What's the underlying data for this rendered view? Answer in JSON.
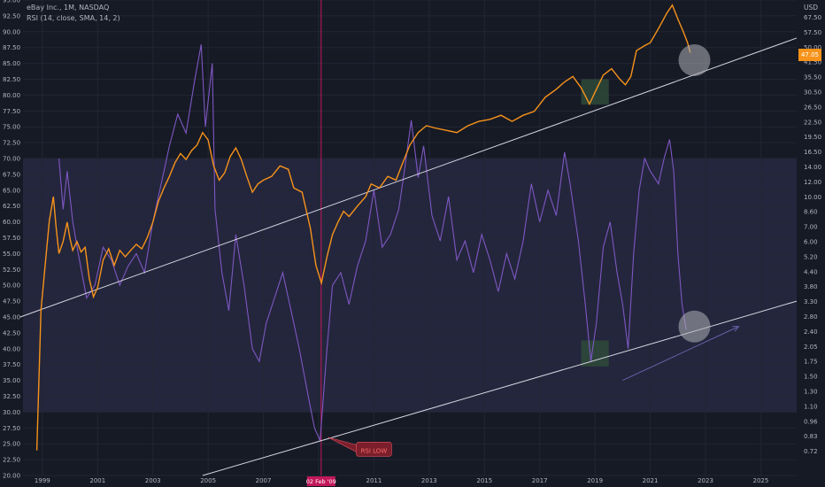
{
  "header": {
    "symbol_line": "eBay Inc., 1M, NASDAQ",
    "rsi_line": "RSI (14, close, SMA, 14, 2)"
  },
  "right_axis": {
    "unit": "USD",
    "ticks": [
      "67.50",
      "57.50",
      "50.00",
      "41.50",
      "35.50",
      "30.50",
      "26.50",
      "22.50",
      "19.50",
      "16.50",
      "14.00",
      "12.00",
      "10.00",
      "8.60",
      "7.00",
      "6.00",
      "5.20",
      "4.40",
      "3.80",
      "3.30",
      "2.80",
      "2.40",
      "2.05",
      "1.75",
      "1.50",
      "1.30",
      "1.10",
      "0.96",
      "0.83",
      "0.72"
    ],
    "price_badge": "47.05"
  },
  "left_axis": {
    "ticks": [
      "95.00",
      "92.50",
      "90.00",
      "87.50",
      "85.00",
      "82.50",
      "80.00",
      "77.50",
      "75.00",
      "72.50",
      "70.00",
      "67.50",
      "65.00",
      "62.50",
      "60.00",
      "57.50",
      "55.00",
      "52.50",
      "50.00",
      "47.50",
      "45.00",
      "42.50",
      "40.00",
      "37.50",
      "35.00",
      "32.50",
      "30.00",
      "27.50",
      "25.00",
      "22.50",
      "20.00"
    ]
  },
  "annotations": {
    "date_marker": "02 Feb '09",
    "rsi_low_label": "RSI LOW"
  },
  "colors": {
    "background": "#161a25",
    "price": "#f7931a",
    "rsi": "#7e57c2",
    "band": "#2a2b45",
    "trendline": "#d6d6e2",
    "marker": "#c2185b",
    "box": "#2e4a3a",
    "circle": "#b0b0b8"
  },
  "chart_data": {
    "type": "line",
    "x_axis": {
      "ticks": [
        "1999",
        "2001",
        "2003",
        "2005",
        "2007",
        "2009",
        "2011",
        "2013",
        "2015",
        "2017",
        "2019",
        "2021",
        "2023",
        "2025"
      ],
      "range": [
        1998.3,
        2026.3
      ]
    },
    "rsi_axis": {
      "range": [
        20,
        95
      ],
      "band": [
        30,
        70
      ]
    },
    "price_axis": {
      "scale": "log",
      "range": [
        0.66,
        80
      ]
    },
    "series": [
      {
        "name": "eBay Inc.",
        "axis": "price",
        "points": [
          [
            1998.8,
            0.85
          ],
          [
            1998.95,
            3.5
          ],
          [
            1999.1,
            5.5
          ],
          [
            1999.25,
            8.6
          ],
          [
            1999.4,
            11.0
          ],
          [
            1999.5,
            8.0
          ],
          [
            1999.6,
            6.2
          ],
          [
            1999.75,
            7.0
          ],
          [
            1999.9,
            8.5
          ],
          [
            2000.0,
            7.2
          ],
          [
            2000.1,
            6.4
          ],
          [
            2000.25,
            7.0
          ],
          [
            2000.4,
            6.3
          ],
          [
            2000.55,
            6.6
          ],
          [
            2000.7,
            4.8
          ],
          [
            2000.85,
            4.0
          ],
          [
            2001.0,
            4.4
          ],
          [
            2001.2,
            5.8
          ],
          [
            2001.4,
            6.5
          ],
          [
            2001.6,
            5.5
          ],
          [
            2001.8,
            6.4
          ],
          [
            2002.0,
            6.0
          ],
          [
            2002.2,
            6.4
          ],
          [
            2002.4,
            6.8
          ],
          [
            2002.6,
            6.5
          ],
          [
            2002.8,
            7.3
          ],
          [
            2003.0,
            8.5
          ],
          [
            2003.2,
            10.5
          ],
          [
            2003.4,
            12.0
          ],
          [
            2003.6,
            13.5
          ],
          [
            2003.8,
            15.5
          ],
          [
            2004.0,
            17.0
          ],
          [
            2004.2,
            16.0
          ],
          [
            2004.4,
            17.5
          ],
          [
            2004.6,
            18.5
          ],
          [
            2004.8,
            21.0
          ],
          [
            2005.0,
            19.5
          ],
          [
            2005.2,
            15.0
          ],
          [
            2005.4,
            13.0
          ],
          [
            2005.6,
            14.0
          ],
          [
            2005.8,
            16.5
          ],
          [
            2006.0,
            18.0
          ],
          [
            2006.2,
            16.0
          ],
          [
            2006.4,
            13.5
          ],
          [
            2006.6,
            11.5
          ],
          [
            2006.8,
            12.5
          ],
          [
            2007.0,
            13.0
          ],
          [
            2007.3,
            13.5
          ],
          [
            2007.6,
            15.0
          ],
          [
            2007.9,
            14.5
          ],
          [
            2008.1,
            12.0
          ],
          [
            2008.4,
            11.5
          ],
          [
            2008.7,
            8.0
          ],
          [
            2008.9,
            5.5
          ],
          [
            2009.1,
            4.6
          ],
          [
            2009.3,
            6.0
          ],
          [
            2009.5,
            7.5
          ],
          [
            2009.7,
            8.5
          ],
          [
            2009.9,
            9.5
          ],
          [
            2010.1,
            9.0
          ],
          [
            2010.4,
            10.0
          ],
          [
            2010.7,
            11.0
          ],
          [
            2010.9,
            12.5
          ],
          [
            2011.2,
            12.0
          ],
          [
            2011.5,
            13.5
          ],
          [
            2011.8,
            13.0
          ],
          [
            2012.0,
            15.0
          ],
          [
            2012.3,
            18.5
          ],
          [
            2012.6,
            21.0
          ],
          [
            2012.9,
            22.5
          ],
          [
            2013.2,
            22.0
          ],
          [
            2013.6,
            21.5
          ],
          [
            2014.0,
            21.0
          ],
          [
            2014.4,
            22.5
          ],
          [
            2014.8,
            23.5
          ],
          [
            2015.2,
            24.0
          ],
          [
            2015.6,
            25.0
          ],
          [
            2016.0,
            23.5
          ],
          [
            2016.4,
            25.0
          ],
          [
            2016.8,
            26.0
          ],
          [
            2017.2,
            30.0
          ],
          [
            2017.6,
            32.5
          ],
          [
            2017.9,
            35.0
          ],
          [
            2018.2,
            37.0
          ],
          [
            2018.5,
            33.0
          ],
          [
            2018.8,
            28.0
          ],
          [
            2019.0,
            31.5
          ],
          [
            2019.3,
            37.5
          ],
          [
            2019.6,
            40.0
          ],
          [
            2019.9,
            36.0
          ],
          [
            2020.1,
            34.0
          ],
          [
            2020.3,
            37.0
          ],
          [
            2020.5,
            48.0
          ],
          [
            2020.8,
            50.5
          ],
          [
            2021.0,
            52.0
          ],
          [
            2021.3,
            60.0
          ],
          [
            2021.6,
            70.0
          ],
          [
            2021.8,
            76.0
          ],
          [
            2022.0,
            66.0
          ],
          [
            2022.2,
            58.0
          ],
          [
            2022.35,
            52.0
          ],
          [
            2022.45,
            47.0
          ]
        ]
      },
      {
        "name": "RSI",
        "axis": "rsi",
        "points": [
          [
            1999.6,
            70.0
          ],
          [
            1999.75,
            62.0
          ],
          [
            1999.9,
            68.0
          ],
          [
            2000.1,
            60.0
          ],
          [
            2000.3,
            55.0
          ],
          [
            2000.6,
            48.0
          ],
          [
            2000.9,
            50.0
          ],
          [
            2001.2,
            56.0
          ],
          [
            2001.5,
            54.0
          ],
          [
            2001.8,
            50.0
          ],
          [
            2002.1,
            53.0
          ],
          [
            2002.4,
            55.0
          ],
          [
            2002.7,
            52.0
          ],
          [
            2003.0,
            60.0
          ],
          [
            2003.3,
            66.0
          ],
          [
            2003.6,
            72.0
          ],
          [
            2003.9,
            77.0
          ],
          [
            2004.2,
            74.0
          ],
          [
            2004.5,
            82.0
          ],
          [
            2004.75,
            88.0
          ],
          [
            2004.9,
            75.0
          ],
          [
            2005.15,
            85.0
          ],
          [
            2005.25,
            62.0
          ],
          [
            2005.5,
            52.0
          ],
          [
            2005.75,
            46.0
          ],
          [
            2006.0,
            58.0
          ],
          [
            2006.3,
            50.0
          ],
          [
            2006.6,
            40.0
          ],
          [
            2006.85,
            38.0
          ],
          [
            2007.1,
            44.0
          ],
          [
            2007.4,
            48.0
          ],
          [
            2007.7,
            52.0
          ],
          [
            2008.0,
            46.0
          ],
          [
            2008.3,
            40.0
          ],
          [
            2008.6,
            33.0
          ],
          [
            2008.85,
            27.5
          ],
          [
            2009.05,
            25.5
          ],
          [
            2009.3,
            40.0
          ],
          [
            2009.5,
            50.0
          ],
          [
            2009.8,
            52.0
          ],
          [
            2010.1,
            47.0
          ],
          [
            2010.4,
            53.0
          ],
          [
            2010.7,
            57.0
          ],
          [
            2011.0,
            65.0
          ],
          [
            2011.3,
            56.0
          ],
          [
            2011.6,
            58.0
          ],
          [
            2011.9,
            62.0
          ],
          [
            2012.1,
            68.0
          ],
          [
            2012.35,
            76.0
          ],
          [
            2012.6,
            67.0
          ],
          [
            2012.8,
            72.0
          ],
          [
            2013.1,
            61.0
          ],
          [
            2013.4,
            57.0
          ],
          [
            2013.7,
            64.0
          ],
          [
            2014.0,
            54.0
          ],
          [
            2014.3,
            57.0
          ],
          [
            2014.6,
            52.0
          ],
          [
            2014.9,
            58.0
          ],
          [
            2015.2,
            54.0
          ],
          [
            2015.5,
            49.0
          ],
          [
            2015.8,
            55.0
          ],
          [
            2016.1,
            51.0
          ],
          [
            2016.4,
            57.0
          ],
          [
            2016.7,
            66.0
          ],
          [
            2017.0,
            60.0
          ],
          [
            2017.3,
            65.0
          ],
          [
            2017.6,
            61.0
          ],
          [
            2017.9,
            71.0
          ],
          [
            2018.1,
            66.0
          ],
          [
            2018.4,
            57.0
          ],
          [
            2018.65,
            47.0
          ],
          [
            2018.85,
            38.0
          ],
          [
            2019.05,
            44.0
          ],
          [
            2019.3,
            56.0
          ],
          [
            2019.55,
            60.0
          ],
          [
            2019.8,
            52.0
          ],
          [
            2020.0,
            47.0
          ],
          [
            2020.2,
            40.0
          ],
          [
            2020.4,
            55.0
          ],
          [
            2020.6,
            65.0
          ],
          [
            2020.8,
            70.0
          ],
          [
            2021.0,
            68.0
          ],
          [
            2021.3,
            66.0
          ],
          [
            2021.5,
            70.0
          ],
          [
            2021.7,
            73.0
          ],
          [
            2021.85,
            68.0
          ],
          [
            2022.0,
            55.0
          ],
          [
            2022.15,
            47.0
          ],
          [
            2022.3,
            43.0
          ]
        ]
      }
    ],
    "trendlines": [
      {
        "axis": "rsi",
        "points": [
          [
            1998.2,
            45.0
          ],
          [
            2026.3,
            89.0
          ]
        ]
      },
      {
        "axis": "rsi",
        "points": [
          [
            2004.8,
            20.0
          ],
          [
            2026.3,
            47.5
          ]
        ]
      }
    ],
    "arrow": {
      "axis": "rsi",
      "from": [
        2020.0,
        35.0
      ],
      "to": [
        2024.2,
        43.5
      ]
    },
    "highlight_boxes": [
      {
        "axis": "rsi",
        "x": [
          2018.5,
          2019.5
        ],
        "y": [
          78.5,
          82.5
        ]
      },
      {
        "axis": "rsi",
        "x": [
          2018.5,
          2019.5
        ],
        "y": [
          37.2,
          41.3
        ]
      }
    ],
    "circles": [
      {
        "axis": "rsi",
        "center": [
          2022.6,
          85.5
        ]
      },
      {
        "axis": "rsi",
        "center": [
          2022.6,
          43.5
        ]
      }
    ],
    "vertical_marker": {
      "x": 2009.09,
      "label": "02 Feb '09"
    },
    "callout": {
      "text": "RSI LOW",
      "at": [
        2011.0,
        24.0
      ],
      "points_to": [
        2009.35,
        26.0
      ]
    }
  }
}
